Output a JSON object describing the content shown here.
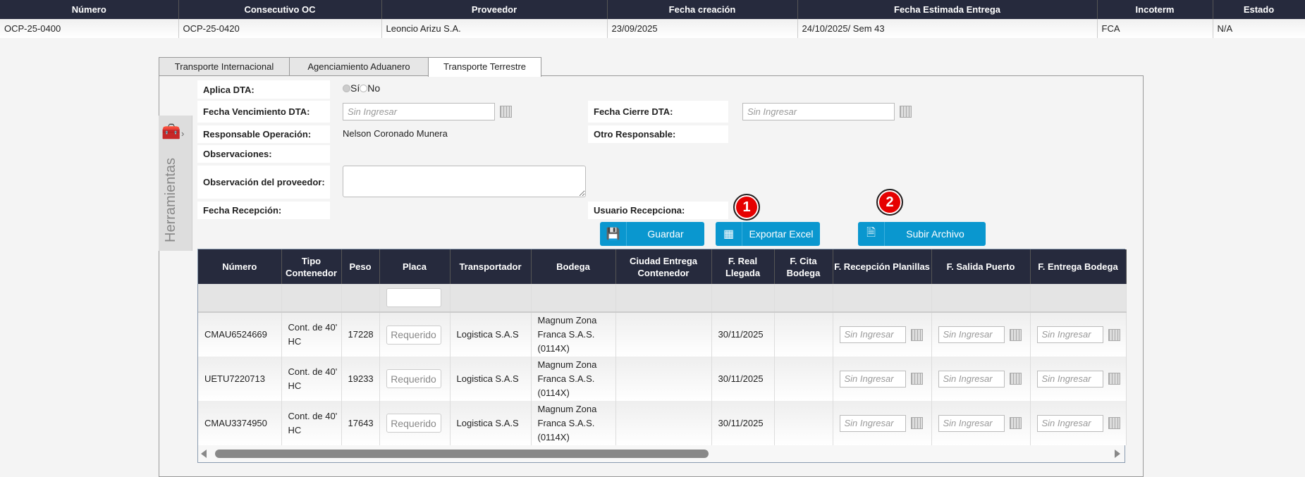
{
  "summary": {
    "headers": [
      "Número",
      "Consecutivo OC",
      "Proveedor",
      "Fecha creación",
      "Fecha Estimada Entrega",
      "Incoterm",
      "Estado"
    ],
    "values": [
      "OCP-25-0400",
      "OCP-25-0420",
      "Leoncio Arizu S.A.",
      "23/09/2025",
      "24/10/2025/ Sem 43",
      "FCA",
      "N/A"
    ]
  },
  "tabs": [
    "Transporte Internacional",
    "Agenciamiento Aduanero",
    "Transporte Terrestre"
  ],
  "tools": {
    "label": "Herramientas",
    "icon": "toolbox-icon"
  },
  "form": {
    "aplica_dta": "Aplica DTA:",
    "si": "Sí",
    "no": "No",
    "selected": "Sí",
    "fecha_venc": "Fecha Vencimiento DTA:",
    "fecha_venc_ph": "Sin Ingresar",
    "fecha_cierre": "Fecha Cierre DTA:",
    "fecha_cierre_ph": "Sin Ingresar",
    "responsable": "Responsable Operación:",
    "responsable_val": "Nelson Coronado Munera",
    "otro": "Otro Responsable:",
    "observaciones": "Observaciones:",
    "obs_prov": "Observación del proveedor:",
    "fecha_recep": "Fecha Recepción:",
    "usuario": "Usuario Recepciona:"
  },
  "buttons": {
    "guardar": "Guardar",
    "exportar": "Exportar Excel",
    "subir": "Subir Archivo"
  },
  "badges": [
    "1",
    "2"
  ],
  "grid": {
    "headers": [
      "Número",
      "Tipo Contenedor",
      "Peso",
      "Placa",
      "Transportador",
      "Bodega",
      "Ciudad Entrega Contenedor",
      "F. Real Llegada",
      "F. Cita Bodega",
      "F. Recepción Planillas",
      "F. Salida Puerto",
      "F. Entrega Bodega"
    ],
    "placa_ph": "Requerido",
    "date_ph": "Sin Ingresar",
    "rows": [
      {
        "numero": "CMAU6524669",
        "tipo": "Cont. de 40' HC",
        "peso": "17228",
        "transportador": "Logistica S.A.S",
        "bodega": "Magnum Zona Franca S.A.S. (0114X)",
        "ciudad": "",
        "llegada": "30/11/2025",
        "cita": ""
      },
      {
        "numero": "UETU7220713",
        "tipo": "Cont. de 40' HC",
        "peso": "19233",
        "transportador": "Logistica S.A.S",
        "bodega": "Magnum Zona Franca S.A.S. (0114X)",
        "ciudad": "",
        "llegada": "30/11/2025",
        "cita": ""
      },
      {
        "numero": "CMAU3374950",
        "tipo": "Cont. de 40' HC",
        "peso": "17643",
        "transportador": "Logistica S.A.S",
        "bodega": "Magnum Zona Franca S.A.S. (0114X)",
        "ciudad": "",
        "llegada": "30/11/2025",
        "cita": ""
      }
    ]
  },
  "colors": {
    "header": "#262a3d",
    "button": "#0a97cf",
    "badge": "#e60000"
  }
}
